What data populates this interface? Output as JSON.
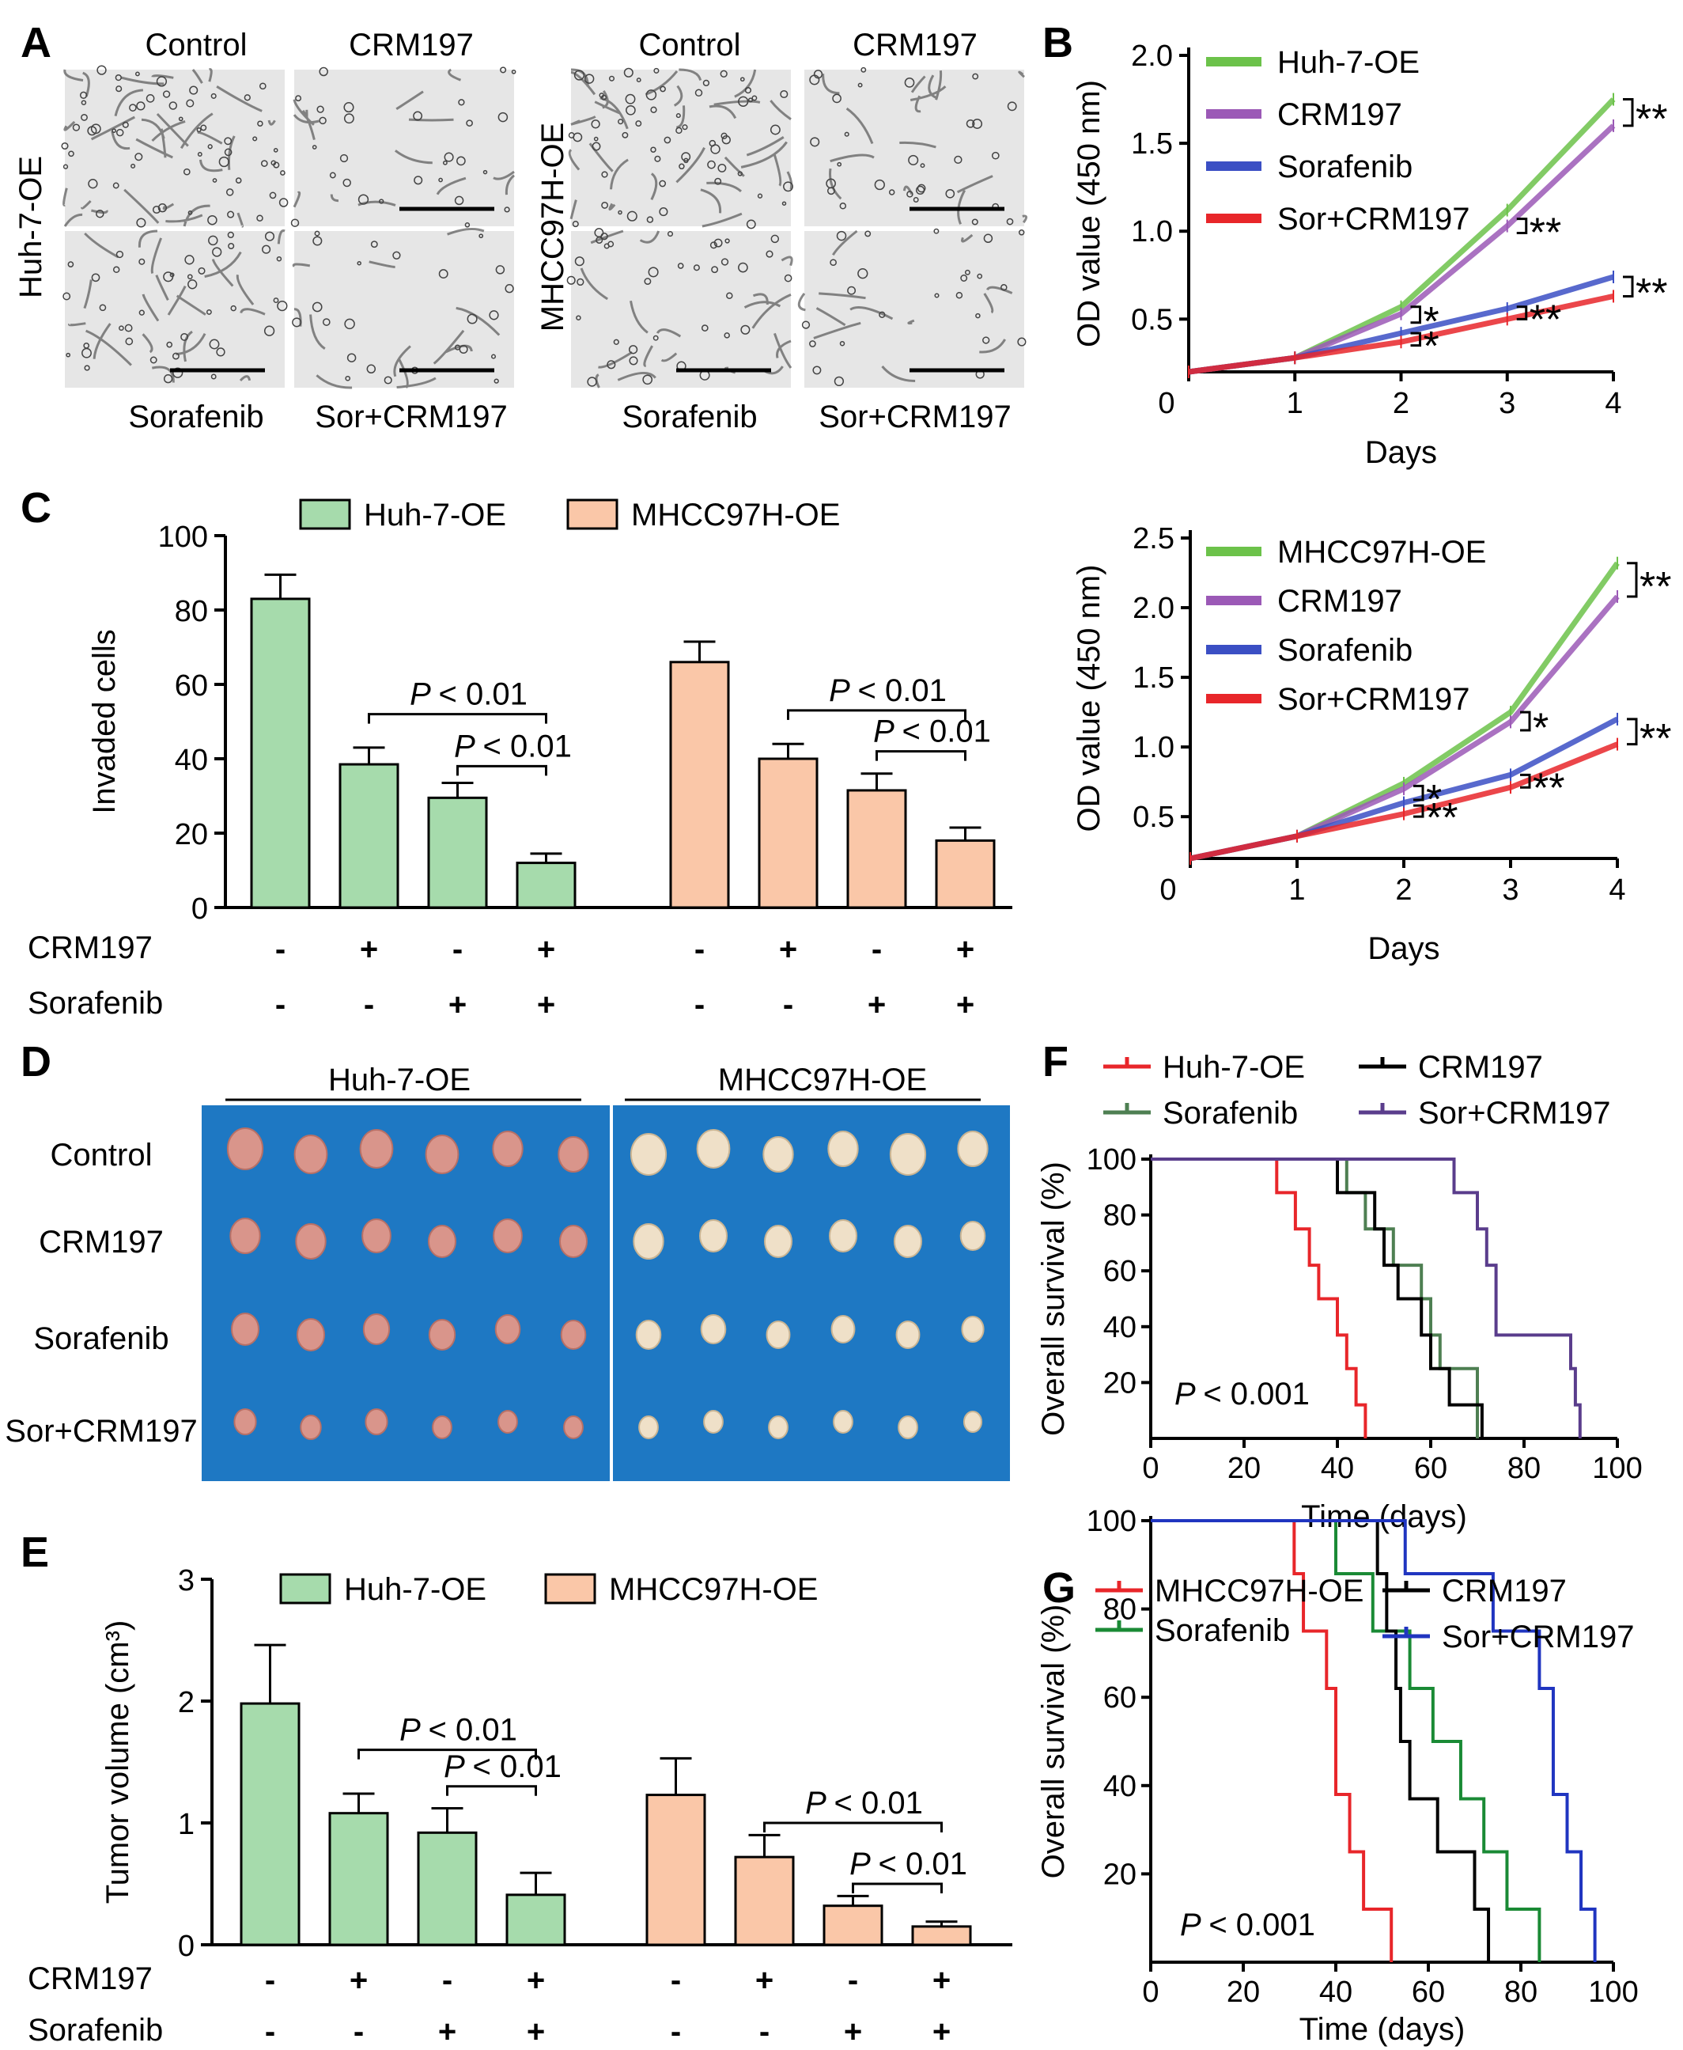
{
  "panels": {
    "A": {
      "letter": "A",
      "groups": [
        {
          "row_label": "Huh-7-OE",
          "top": [
            "Control",
            "CRM197"
          ],
          "bottom": [
            "Sorafenib",
            "Sor+CRM197"
          ]
        },
        {
          "row_label": "MHCC97H-OE",
          "top": [
            "Control",
            "CRM197"
          ],
          "bottom": [
            "Sorafenib",
            "Sor+CRM197"
          ]
        }
      ]
    },
    "D": {
      "letter": "D",
      "groups": [
        "Huh-7-OE",
        "MHCC97H-OE"
      ],
      "rows": [
        "Control",
        "CRM197",
        "Sorafenib",
        "Sor+CRM197"
      ],
      "tumor_colors": {
        "huh": "#d9958b",
        "mhcc": "#efe0c8"
      },
      "background": "#1e78c3"
    }
  },
  "chart_data": [
    {
      "id": "B1",
      "letter": "B",
      "type": "line",
      "x": [
        0,
        1,
        2,
        3,
        4
      ],
      "xlim": [
        0,
        4
      ],
      "ylim": [
        0.2,
        2.0
      ],
      "xlabel": "Days",
      "ylabel": "OD value (450 nm)",
      "x_ticks": [
        "0",
        "1",
        "2",
        "3",
        "4"
      ],
      "y_ticks": [
        "0.5",
        "1.0",
        "1.5",
        "2.0"
      ],
      "series": [
        {
          "name": "Huh-7-OE",
          "color": "#6cc24a",
          "values": [
            0.2,
            0.28,
            0.57,
            1.12,
            1.75
          ]
        },
        {
          "name": "CRM197",
          "color": "#9b59b6",
          "values": [
            0.2,
            0.28,
            0.53,
            1.03,
            1.6
          ]
        },
        {
          "name": "Sorafenib",
          "color": "#3b4fc4",
          "values": [
            0.2,
            0.28,
            0.42,
            0.56,
            0.74
          ]
        },
        {
          "name": "Sor+CRM197",
          "color": "#e8262a",
          "values": [
            0.2,
            0.28,
            0.37,
            0.5,
            0.63
          ]
        }
      ],
      "annotations": [
        {
          "x": 4,
          "y1": 1.6,
          "y2": 1.75,
          "text": "**"
        },
        {
          "x": 3,
          "y1": 0.99,
          "y2": 1.07,
          "text": "**"
        },
        {
          "x": 4,
          "y1": 0.63,
          "y2": 0.74,
          "text": "**"
        },
        {
          "x": 2,
          "y1": 0.48,
          "y2": 0.57,
          "text": "*"
        },
        {
          "x": 3,
          "y1": 0.5,
          "y2": 0.57,
          "text": "**"
        },
        {
          "x": 2,
          "y1": 0.35,
          "y2": 0.42,
          "text": "*"
        }
      ]
    },
    {
      "id": "B2",
      "letter": "",
      "type": "line",
      "x": [
        0,
        1,
        2,
        3,
        4
      ],
      "xlim": [
        0,
        4
      ],
      "ylim": [
        0.2,
        2.5
      ],
      "xlabel": "Days",
      "ylabel": "OD value (450 nm)",
      "x_ticks": [
        "0",
        "1",
        "2",
        "3",
        "4"
      ],
      "y_ticks": [
        "0.5",
        "1.0",
        "1.5",
        "2.0",
        "2.5"
      ],
      "series": [
        {
          "name": "MHCC97H-OE",
          "color": "#6cc24a",
          "values": [
            0.2,
            0.36,
            0.74,
            1.25,
            2.32
          ]
        },
        {
          "name": "CRM197",
          "color": "#9b59b6",
          "values": [
            0.2,
            0.36,
            0.7,
            1.18,
            2.08
          ]
        },
        {
          "name": "Sorafenib",
          "color": "#3b4fc4",
          "values": [
            0.2,
            0.36,
            0.6,
            0.8,
            1.2
          ]
        },
        {
          "name": "Sor+CRM197",
          "color": "#e8262a",
          "values": [
            0.2,
            0.36,
            0.52,
            0.71,
            1.02
          ]
        }
      ],
      "annotations": [
        {
          "x": 4,
          "y1": 2.08,
          "y2": 2.32,
          "text": "**"
        },
        {
          "x": 3,
          "y1": 1.12,
          "y2": 1.25,
          "text": "*"
        },
        {
          "x": 4,
          "y1": 1.02,
          "y2": 1.2,
          "text": "**"
        },
        {
          "x": 2,
          "y1": 0.62,
          "y2": 0.72,
          "text": "*"
        },
        {
          "x": 3,
          "y1": 0.71,
          "y2": 0.8,
          "text": "**"
        },
        {
          "x": 2,
          "y1": 0.5,
          "y2": 0.58,
          "text": "**"
        }
      ]
    },
    {
      "id": "C",
      "letter": "C",
      "type": "bar",
      "ylabel": "Invaded cells",
      "ylim": [
        0,
        100
      ],
      "y_ticks": [
        "0",
        "20",
        "40",
        "60",
        "80",
        "100"
      ],
      "legend": [
        {
          "name": "Huh-7-OE",
          "color": "#a6dbac"
        },
        {
          "name": "MHCC97H-OE",
          "color": "#fac7a8"
        }
      ],
      "groups": [
        {
          "name": "Huh-7-OE",
          "values": [
            83,
            38.5,
            29.5,
            12
          ],
          "errors": [
            6.5,
            4.5,
            4,
            2.5
          ]
        },
        {
          "name": "MHCC97H-OE",
          "values": [
            66,
            40,
            31.5,
            18
          ],
          "errors": [
            5.5,
            4,
            4.5,
            3.5
          ]
        }
      ],
      "row_labels": [
        "CRM197",
        "Sorafenib"
      ],
      "crm_signs": [
        "-",
        "+",
        "-",
        "+"
      ],
      "sor_signs": [
        "-",
        "-",
        "+",
        "+"
      ],
      "brackets": [
        {
          "group": 0,
          "from": 1,
          "to": 3,
          "y": 52,
          "text": "< 0.01"
        },
        {
          "group": 0,
          "from": 2,
          "to": 3,
          "y": 38,
          "text": "< 0.01"
        },
        {
          "group": 1,
          "from": 1,
          "to": 3,
          "y": 53,
          "text": "< 0.01"
        },
        {
          "group": 1,
          "from": 2,
          "to": 3,
          "y": 42,
          "text": "< 0.01"
        }
      ]
    },
    {
      "id": "E",
      "letter": "E",
      "type": "bar",
      "ylabel": "Tumor volume (cm³)",
      "ylim": [
        0,
        3
      ],
      "y_ticks": [
        "0",
        "1",
        "2",
        "3"
      ],
      "legend": [
        {
          "name": "Huh-7-OE",
          "color": "#a6dbac"
        },
        {
          "name": "MHCC97H-OE",
          "color": "#fac7a8"
        }
      ],
      "groups": [
        {
          "name": "Huh-7-OE",
          "values": [
            1.98,
            1.08,
            0.92,
            0.41
          ],
          "errors": [
            0.48,
            0.16,
            0.2,
            0.18
          ]
        },
        {
          "name": "MHCC97H-OE",
          "values": [
            1.23,
            0.72,
            0.32,
            0.15
          ],
          "errors": [
            0.3,
            0.18,
            0.08,
            0.04
          ]
        }
      ],
      "row_labels": [
        "CRM197",
        "Sorafenib"
      ],
      "crm_signs": [
        "-",
        "+",
        "-",
        "+"
      ],
      "sor_signs": [
        "-",
        "-",
        "+",
        "+"
      ],
      "brackets": [
        {
          "group": 0,
          "from": 1,
          "to": 3,
          "y": 1.6,
          "text": "< 0.01"
        },
        {
          "group": 0,
          "from": 2,
          "to": 3,
          "y": 1.3,
          "text": "< 0.01"
        },
        {
          "group": 1,
          "from": 1,
          "to": 3,
          "y": 1.0,
          "text": "< 0.01"
        },
        {
          "group": 1,
          "from": 2,
          "to": 3,
          "y": 0.5,
          "text": "< 0.01"
        }
      ]
    },
    {
      "id": "F",
      "letter": "F",
      "type": "line",
      "subtype": "survival",
      "xlabel": "Time (days)",
      "ylabel": "Overall survival (%)",
      "xlim": [
        0,
        100
      ],
      "ylim": [
        0,
        100
      ],
      "x_ticks": [
        "0",
        "20",
        "40",
        "60",
        "80",
        "100"
      ],
      "y_ticks": [
        "20",
        "40",
        "60",
        "80",
        "100"
      ],
      "pvalue": "< 0.001",
      "series": [
        {
          "name": "Huh-7-OE",
          "color": "#e8262a",
          "times": [
            27,
            31,
            34,
            36,
            40,
            42,
            44,
            46
          ],
          "surv": [
            100,
            88,
            75,
            62,
            50,
            37,
            25,
            12,
            0
          ]
        },
        {
          "name": "Sorafenib",
          "color": "#4e7f52",
          "times": [
            42,
            46,
            52,
            58,
            60,
            62,
            70
          ],
          "surv": [
            100,
            88,
            75,
            62,
            50,
            37,
            25,
            0
          ]
        },
        {
          "name": "CRM197",
          "color": "#000000",
          "times": [
            40,
            48,
            50,
            53,
            58,
            60,
            64,
            71
          ],
          "surv": [
            100,
            88,
            75,
            62,
            50,
            37,
            25,
            12,
            0
          ]
        },
        {
          "name": "Sor+CRM197",
          "color": "#5a3d8c",
          "times": [
            65,
            70,
            72,
            74,
            90,
            91,
            92
          ],
          "surv": [
            100,
            88,
            75,
            62,
            37,
            25,
            12,
            0
          ]
        }
      ]
    },
    {
      "id": "G",
      "letter": "G",
      "type": "line",
      "subtype": "survival",
      "xlabel": "Time (days)",
      "ylabel": "Overall survival (%)",
      "xlim": [
        0,
        100
      ],
      "ylim": [
        0,
        100
      ],
      "x_ticks": [
        "0",
        "20",
        "40",
        "60",
        "80",
        "100"
      ],
      "y_ticks": [
        "20",
        "40",
        "60",
        "80",
        "100"
      ],
      "pvalue": "< 0.001",
      "series": [
        {
          "name": "MHCC97H-OE",
          "color": "#e8262a",
          "times": [
            31,
            33,
            38,
            40,
            43,
            46,
            52
          ],
          "surv": [
            100,
            88,
            75,
            62,
            38,
            25,
            12,
            0
          ]
        },
        {
          "name": "Sorafenib",
          "color": "#1a8a35",
          "times": [
            40,
            48,
            56,
            61,
            67,
            72,
            77,
            84
          ],
          "surv": [
            100,
            88,
            75,
            62,
            50,
            37,
            25,
            12,
            0
          ]
        },
        {
          "name": "CRM197",
          "color": "#000000",
          "times": [
            49,
            51,
            53,
            54,
            56,
            62,
            70,
            73
          ],
          "surv": [
            100,
            88,
            75,
            62,
            50,
            37,
            25,
            12,
            0
          ]
        },
        {
          "name": "Sor+CRM197",
          "color": "#2035c0",
          "times": [
            55,
            74,
            84,
            87,
            90,
            93,
            96
          ],
          "surv": [
            100,
            88,
            75,
            62,
            38,
            25,
            12,
            0
          ]
        }
      ]
    }
  ]
}
